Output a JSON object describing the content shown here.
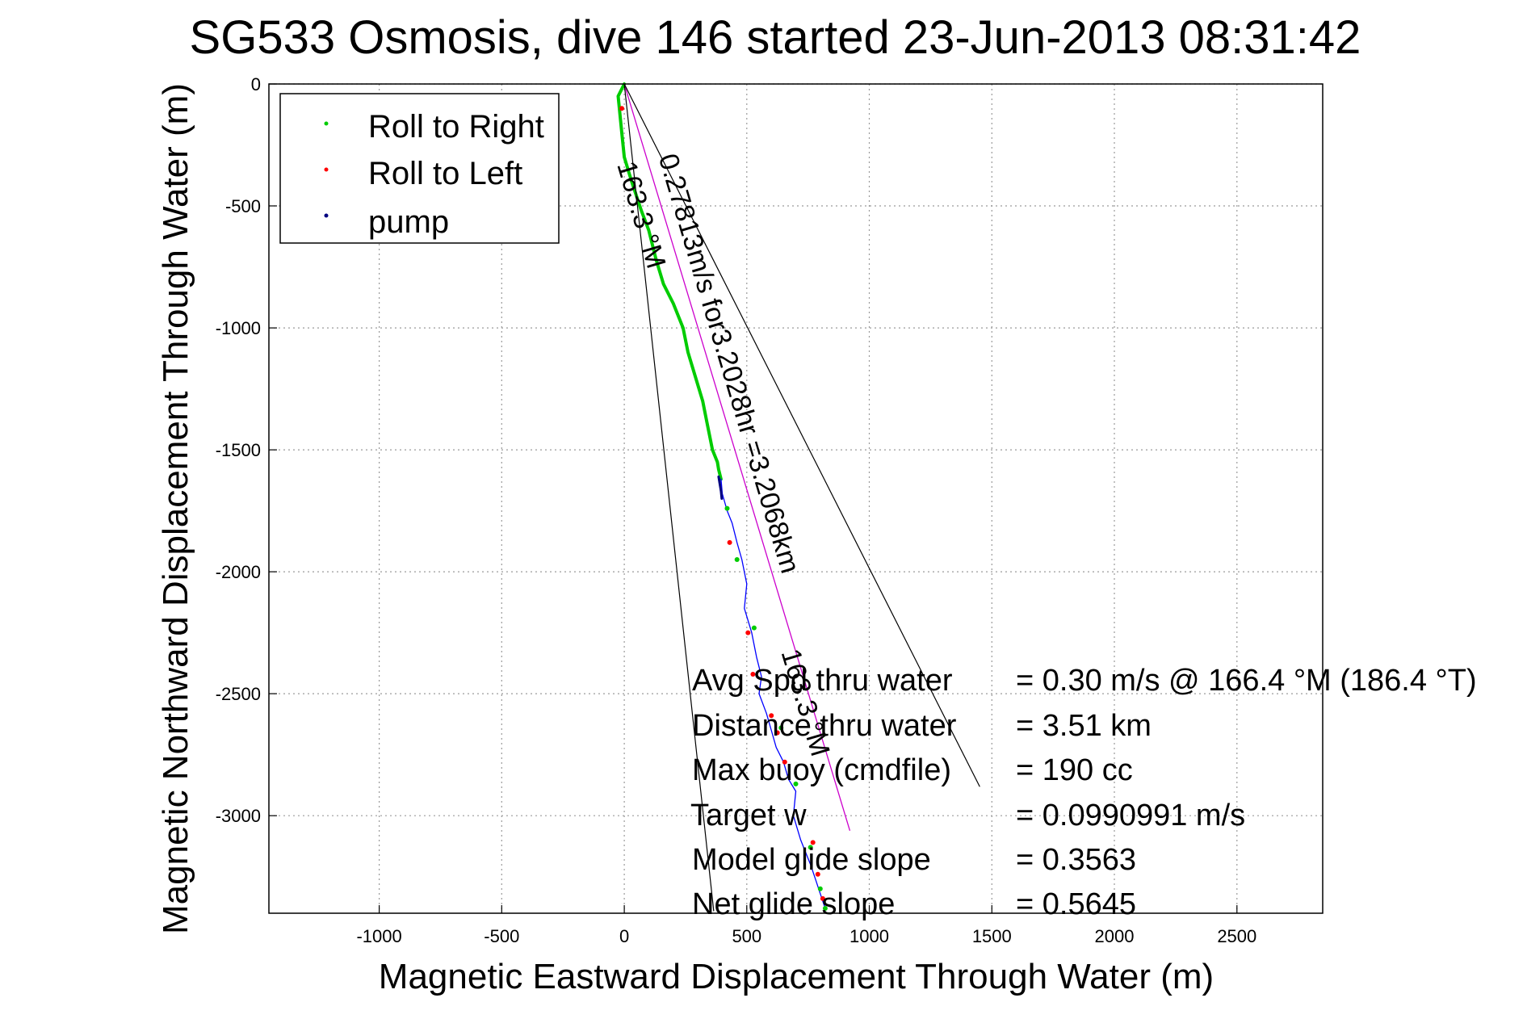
{
  "chart_data": {
    "type": "line",
    "title": "SG533 Osmosis, dive 146 started 23-Jun-2013 08:31:42",
    "xlabel": "Magnetic Eastward Displacement Through Water (m)",
    "ylabel": "Magnetic Northward Displacement Through Water (m)",
    "xlim": [
      -1450,
      2850
    ],
    "ylim": [
      -3400,
      0
    ],
    "xticks": [
      -1000,
      -500,
      0,
      500,
      1000,
      1500,
      2000,
      2500
    ],
    "yticks": [
      0,
      -500,
      -1000,
      -1500,
      -2000,
      -2500,
      -3000
    ],
    "grid": true,
    "legend_position": "top-left",
    "legend": [
      {
        "label": "Roll to Right",
        "color": "#00cc00"
      },
      {
        "label": "Roll to Left",
        "color": "#ff0000"
      },
      {
        "label": "pump",
        "color": "#000080"
      }
    ],
    "series": [
      {
        "role": "track-green",
        "color": "#00cc00",
        "x": [
          0,
          -25,
          -20,
          -10,
          0,
          30,
          70,
          100,
          130,
          160,
          200,
          240,
          260,
          290,
          320,
          340,
          360,
          380,
          385,
          395
        ],
        "y": [
          0,
          -50,
          -100,
          -200,
          -300,
          -400,
          -520,
          -600,
          -720,
          -820,
          -900,
          -1000,
          -1100,
          -1200,
          -1300,
          -1400,
          -1500,
          -1550,
          -1580,
          -1620
        ]
      },
      {
        "role": "track-blue",
        "color": "#0000ff",
        "x": [
          395,
          400,
          420,
          440,
          460,
          480,
          500,
          490,
          520,
          540,
          560,
          550,
          580,
          600,
          620,
          650,
          670,
          700,
          690,
          720,
          740,
          760,
          780,
          800,
          820
        ],
        "y": [
          -1620,
          -1680,
          -1750,
          -1800,
          -1880,
          -1950,
          -2050,
          -2150,
          -2250,
          -2350,
          -2430,
          -2500,
          -2580,
          -2650,
          -2720,
          -2780,
          -2850,
          -2900,
          -3000,
          -3100,
          -3150,
          -3200,
          -3260,
          -3320,
          -3380
        ]
      },
      {
        "role": "pump",
        "color": "#000080",
        "x": [
          385,
          390,
          395,
          398
        ],
        "y": [
          -1610,
          -1640,
          -1670,
          -1700
        ]
      },
      {
        "role": "roll-left",
        "color": "#ff0000",
        "x": [
          -10,
          430,
          505,
          525,
          600,
          625,
          655,
          770,
          790,
          810
        ],
        "y": [
          -100,
          -1880,
          -2250,
          -2420,
          -2590,
          -2660,
          -2780,
          -3110,
          -3240,
          -3340
        ]
      },
      {
        "role": "roll-right",
        "color": "#00cc00",
        "x": [
          420,
          460,
          530,
          640,
          700,
          760,
          800,
          820
        ],
        "y": [
          -1740,
          -1950,
          -2230,
          -2640,
          -2870,
          -3130,
          -3300,
          -3380
        ]
      },
      {
        "role": "heading-line",
        "color": "#cc00cc",
        "x": [
          0,
          920
        ],
        "y": [
          0,
          -3060
        ]
      },
      {
        "role": "envelope-left",
        "color": "#000000",
        "x": [
          0,
          365
        ],
        "y": [
          0,
          -3390
        ]
      },
      {
        "role": "envelope-right",
        "color": "#000000",
        "x": [
          0,
          1450
        ],
        "y": [
          0,
          -2880
        ]
      }
    ],
    "annotations": [
      {
        "text": "0.27813m/s for3.2028hr =3.2068km",
        "x": 140,
        "y": -300
      },
      {
        "text": "163.3 °M",
        "x": -30,
        "y": -330
      },
      {
        "text": "163.3 °M",
        "x": 640,
        "y": -2330
      }
    ],
    "stats": [
      {
        "label": "Avg Spd thru water",
        "value": "=  0.30 m/s @ 166.4 °M (186.4 °T)"
      },
      {
        "label": "Distance thru water",
        "value": "=  3.51 km"
      },
      {
        "label": "Max buoy (cmdfile)",
        "value": "= 190 cc"
      },
      {
        "label": "Target w",
        "value": "= 0.0990991 m/s"
      },
      {
        "label": "Model glide slope",
        "value": "= 0.3563"
      },
      {
        "label": "Net glide slope",
        "value": "= 0.5645"
      }
    ]
  }
}
